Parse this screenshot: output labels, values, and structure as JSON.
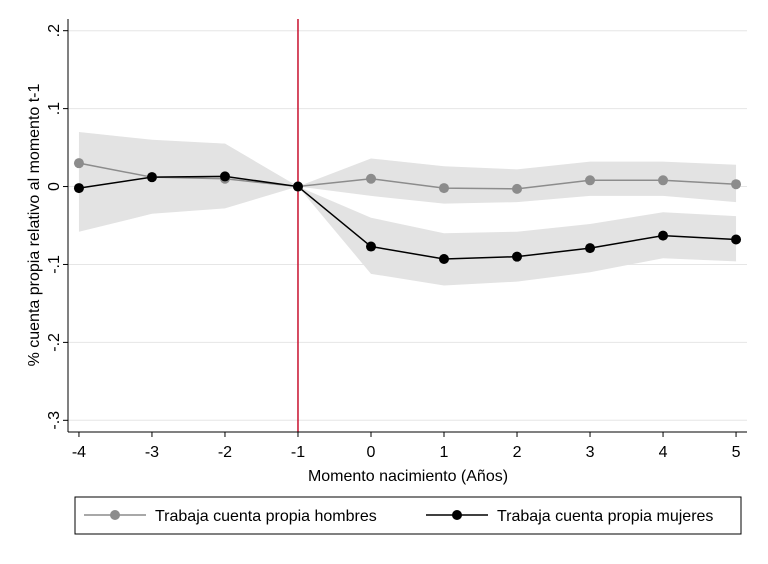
{
  "chart_data": {
    "type": "line",
    "title": "",
    "xlabel": "Momento nacimiento (Años)",
    "ylabel": "% cuenta propia relativo al momento t-1",
    "x": [
      -4,
      -3,
      -2,
      -1,
      0,
      1,
      2,
      3,
      4,
      5
    ],
    "x_ticks": [
      "-4",
      "-3",
      "-2",
      "-1",
      "0",
      "1",
      "2",
      "3",
      "4",
      "5"
    ],
    "y_ticks": [
      {
        "value": 0.2,
        "label": ".2"
      },
      {
        "value": 0.1,
        "label": ".1"
      },
      {
        "value": 0.0,
        "label": "0"
      },
      {
        "value": -0.1,
        "label": "-.1"
      },
      {
        "value": -0.2,
        "label": "-.2"
      },
      {
        "value": -0.3,
        "label": "-.3"
      }
    ],
    "xlim": [
      -4.15,
      5.15
    ],
    "ylim": [
      -0.315,
      0.215
    ],
    "reference_line": {
      "x": -1,
      "color": "#c8102e"
    },
    "grid": true,
    "legend_position": "bottom",
    "series": [
      {
        "name": "Trabaja cuenta propia hombres",
        "color": "#8c8c8c",
        "values": [
          0.03,
          0.012,
          0.01,
          0.0,
          0.01,
          -0.002,
          -0.003,
          0.008,
          0.008,
          0.003
        ],
        "ci_low": [
          -0.01,
          -0.015,
          -0.015,
          0.0,
          -0.012,
          -0.022,
          -0.02,
          -0.012,
          -0.012,
          -0.02
        ],
        "ci_high": [
          0.07,
          0.06,
          0.055,
          0.0,
          0.036,
          0.026,
          0.022,
          0.032,
          0.032,
          0.028
        ]
      },
      {
        "name": "Trabaja cuenta propia mujeres",
        "color": "#000000",
        "values": [
          -0.002,
          0.012,
          0.013,
          0.0,
          -0.077,
          -0.093,
          -0.09,
          -0.079,
          -0.063,
          -0.068
        ],
        "ci_low": [
          -0.058,
          -0.035,
          -0.028,
          0.0,
          -0.112,
          -0.127,
          -0.122,
          -0.11,
          -0.092,
          -0.096
        ],
        "ci_high": [
          0.05,
          0.058,
          0.055,
          0.0,
          -0.04,
          -0.06,
          -0.058,
          -0.048,
          -0.033,
          -0.038
        ]
      }
    ]
  }
}
